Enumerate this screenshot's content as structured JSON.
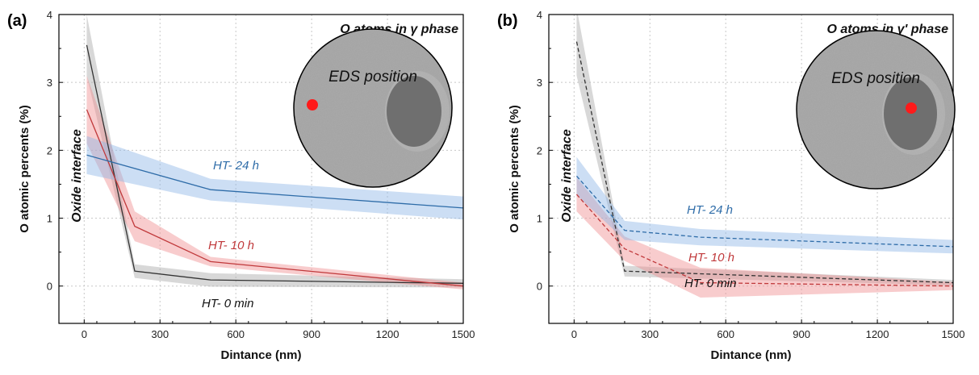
{
  "chart_data": [
    {
      "type": "line",
      "panel_label": "(a)",
      "inset_title": "O atoms in γ phase",
      "inset_label": "EDS position",
      "annotation": "Oxide interface",
      "xlabel": "Dintance (nm)",
      "ylabel": "O atomic percents (%)",
      "xlim": [
        -100,
        1500
      ],
      "ylim": [
        -0.55,
        4
      ],
      "xticks": [
        0,
        300,
        600,
        900,
        1200,
        1500
      ],
      "yticks": [
        0,
        1,
        2,
        3,
        4
      ],
      "line_style": "solid",
      "series": [
        {
          "name": "HT- 0 min",
          "color": "#333333",
          "band_color": "#a8a8a8",
          "x": [
            10,
            200,
            500,
            1500
          ],
          "y": [
            3.55,
            0.22,
            0.09,
            0.04
          ],
          "band": [
            0.45,
            0.1,
            0.1,
            0.06
          ]
        },
        {
          "name": "HT- 10 h",
          "color": "#c0393b",
          "band_color": "#f08f91",
          "x": [
            10,
            200,
            500,
            1500
          ],
          "y": [
            2.6,
            0.88,
            0.36,
            0.0
          ],
          "band": [
            0.5,
            0.22,
            0.07,
            0.05
          ]
        },
        {
          "name": "HT- 24 h",
          "color": "#2e6ca8",
          "band_color": "#8fb5e6",
          "x": [
            10,
            500,
            1500
          ],
          "y": [
            1.93,
            1.42,
            1.15
          ],
          "band": [
            0.28,
            0.16,
            0.17
          ]
        }
      ]
    },
    {
      "type": "line",
      "panel_label": "(b)",
      "inset_title": "O atoms in γ' phase",
      "inset_label": "EDS position",
      "annotation": "Oxide interface",
      "xlabel": "Dintance (nm)",
      "ylabel": "O atomic percents (%)",
      "xlim": [
        -100,
        1500
      ],
      "ylim": [
        -0.55,
        4
      ],
      "xticks": [
        0,
        300,
        600,
        900,
        1200,
        1500
      ],
      "yticks": [
        0,
        1,
        2,
        3,
        4
      ],
      "line_style": "dashed",
      "series": [
        {
          "name": "HT- 0 min",
          "color": "#333333",
          "band_color": "#a8a8a8",
          "x": [
            10,
            200,
            1500
          ],
          "y": [
            3.6,
            0.22,
            0.05
          ],
          "band": [
            0.5,
            0.08,
            0.04
          ]
        },
        {
          "name": "HT- 10 h",
          "color": "#c0393b",
          "band_color": "#f08f91",
          "x": [
            10,
            200,
            500,
            1500
          ],
          "y": [
            1.35,
            0.55,
            0.05,
            0.0
          ],
          "band": [
            0.25,
            0.18,
            0.22,
            0.06
          ]
        },
        {
          "name": "HT- 24 h",
          "color": "#2e6ca8",
          "band_color": "#8fb5e6",
          "x": [
            10,
            200,
            500,
            1500
          ],
          "y": [
            1.62,
            0.82,
            0.72,
            0.58
          ],
          "band": [
            0.28,
            0.14,
            0.12,
            0.1
          ]
        }
      ]
    }
  ]
}
